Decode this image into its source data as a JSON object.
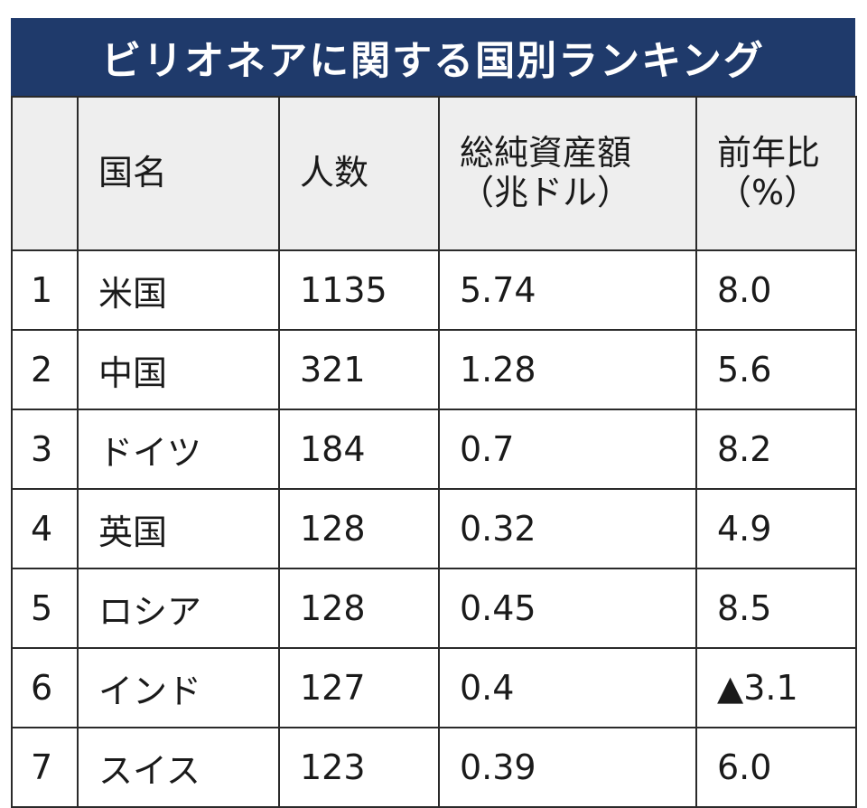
{
  "title": "ビリオネアに関する国別ランキング",
  "header": {
    "rank": "",
    "country": "国名",
    "count": "人数",
    "assets_line1": "総純資産額",
    "assets_line2": "（兆ドル）",
    "yoy_line1": "前年比",
    "yoy_line2": "（%）"
  },
  "rows": [
    {
      "rank": "1",
      "country": "米国",
      "count": "1135",
      "assets": "5.74",
      "yoy": "8.0"
    },
    {
      "rank": "2",
      "country": "中国",
      "count": "321",
      "assets": "1.28",
      "yoy": "5.6"
    },
    {
      "rank": "3",
      "country": "ドイツ",
      "count": "184",
      "assets": "0.7",
      "yoy": "8.2"
    },
    {
      "rank": "4",
      "country": "英国",
      "count": "128",
      "assets": "0.32",
      "yoy": "4.9"
    },
    {
      "rank": "5",
      "country": "ロシア",
      "count": "128",
      "assets": "0.45",
      "yoy": "8.5"
    },
    {
      "rank": "6",
      "country": "インド",
      "count": "127",
      "assets": "0.4",
      "yoy": "▲3.1"
    },
    {
      "rank": "7",
      "country": "スイス",
      "count": "123",
      "assets": "0.39",
      "yoy": "6.0"
    }
  ],
  "chart_data": {
    "type": "table",
    "title": "ビリオネアに関する国別ランキング",
    "columns": [
      "",
      "国名",
      "人数",
      "総純資産額（兆ドル）",
      "前年比（%）"
    ],
    "rows": [
      [
        "1",
        "米国",
        1135,
        5.74,
        8.0
      ],
      [
        "2",
        "中国",
        321,
        1.28,
        5.6
      ],
      [
        "3",
        "ドイツ",
        184,
        0.7,
        8.2
      ],
      [
        "4",
        "英国",
        128,
        0.32,
        4.9
      ],
      [
        "5",
        "ロシア",
        128,
        0.45,
        8.5
      ],
      [
        "6",
        "インド",
        127,
        0.4,
        -3.1
      ],
      [
        "7",
        "スイス",
        123,
        0.39,
        6.0
      ]
    ]
  }
}
